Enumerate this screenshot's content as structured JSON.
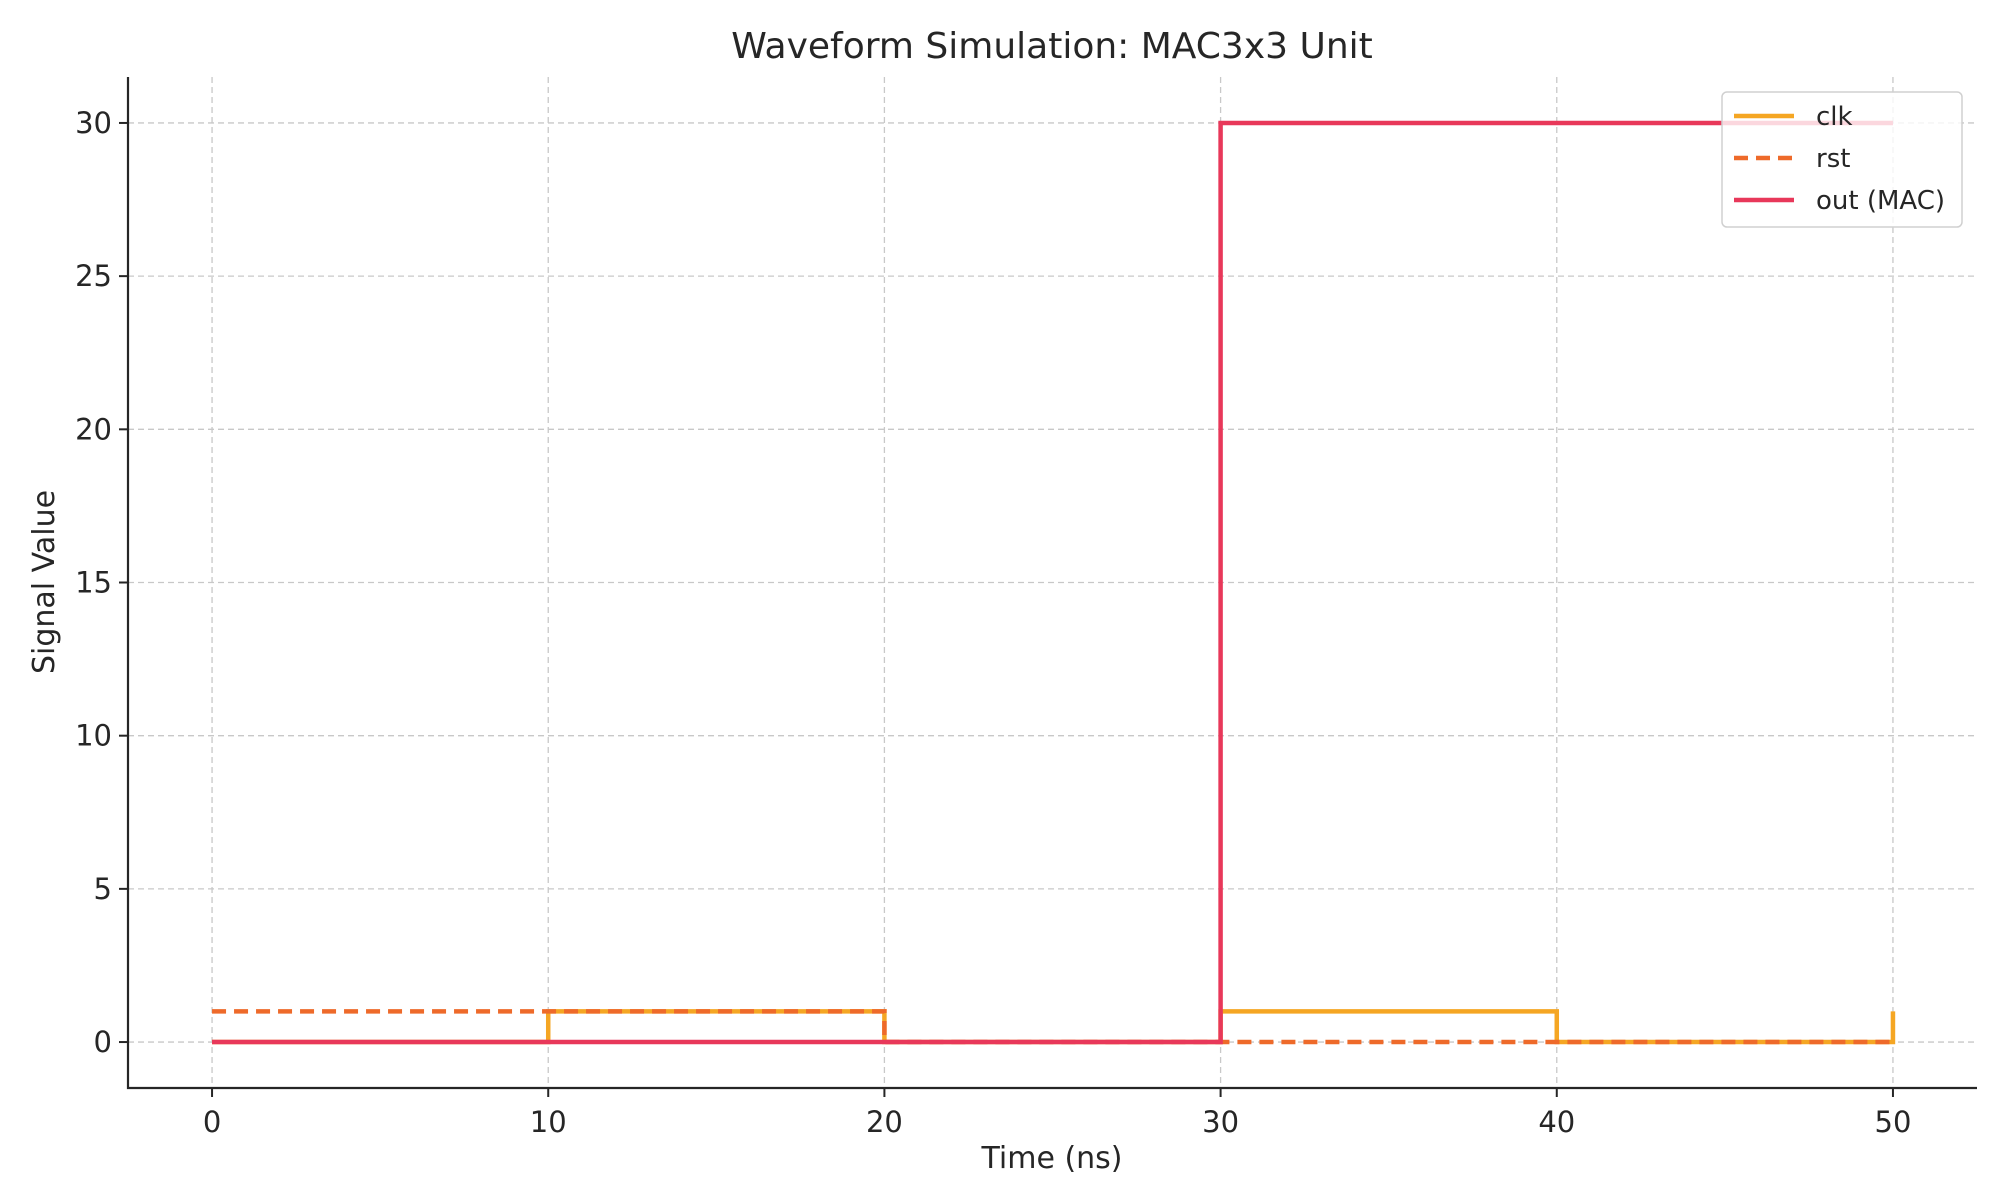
{
  "chart_data": {
    "type": "line",
    "step": "post",
    "title": "Waveform Simulation: MAC3x3 Unit",
    "xlabel": "Time (ns)",
    "ylabel": "Signal Value",
    "xlim": [
      -2.5,
      52.5
    ],
    "ylim": [
      -1.5,
      31.5
    ],
    "xticks": [
      0,
      10,
      20,
      30,
      40,
      50
    ],
    "yticks": [
      0,
      5,
      10,
      15,
      20,
      25,
      30
    ],
    "grid": true,
    "legend_position": "top-right",
    "series": [
      {
        "name": "clk",
        "color": "#f5a623",
        "style": "solid",
        "x": [
          0,
          10,
          20,
          30,
          40,
          50
        ],
        "y": [
          0,
          1,
          0,
          1,
          0,
          1
        ]
      },
      {
        "name": "rst",
        "color": "#ee6a2a",
        "style": "dashed",
        "x": [
          0,
          10,
          20,
          30,
          40,
          50
        ],
        "y": [
          1,
          1,
          0,
          0,
          0,
          0
        ]
      },
      {
        "name": "out (MAC)",
        "color": "#e8385a",
        "style": "solid",
        "x": [
          0,
          10,
          20,
          30,
          40,
          50
        ],
        "y": [
          0,
          0,
          0,
          30,
          30,
          30
        ]
      }
    ]
  }
}
